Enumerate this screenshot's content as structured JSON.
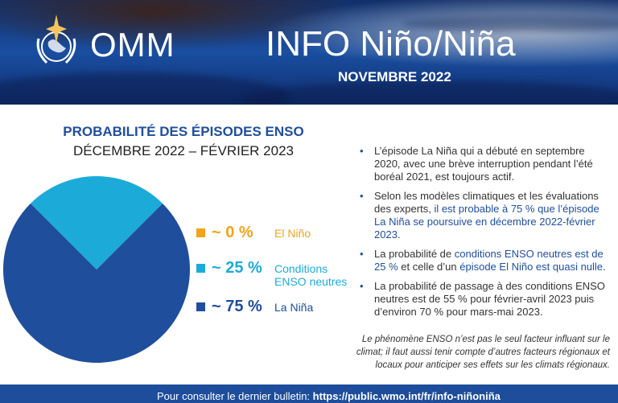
{
  "header": {
    "org": "OMM",
    "title": "INFO Niño/Niña",
    "subtitle": "NOVEMBRE 2022"
  },
  "chart_data": {
    "type": "pie",
    "title": "PROBABILITÉ DES ÉPISODES ENSO",
    "subtitle": "DÉCEMBRE 2022 – FÉVRIER 2023",
    "series": [
      {
        "name": "El Niño",
        "value": 0,
        "label": "~ 0 %",
        "color": "#f2a31b"
      },
      {
        "name": "Conditions ENSO neutres",
        "value": 25,
        "label": "~ 25 %",
        "color": "#1cabd9"
      },
      {
        "name": "La Niña",
        "value": 75,
        "label": "~ 75 %",
        "color": "#1f4e9c"
      }
    ]
  },
  "bullets": [
    {
      "parts": [
        {
          "t": "L’épisode La Niña qui a débuté en septembre 2020, avec une brève interruption pendant l’été boréal 2021, est toujours actif.",
          "hl": false
        }
      ]
    },
    {
      "parts": [
        {
          "t": "Selon les modèles climatiques et les évaluations des experts, ",
          "hl": false
        },
        {
          "t": "il est probable à 75 % que l’épisode La Niña se poursuive en décembre 2022-février 2023",
          "hl": true
        },
        {
          "t": ".",
          "hl": false
        }
      ]
    },
    {
      "parts": [
        {
          "t": "La probabilité de ",
          "hl": false
        },
        {
          "t": "conditions ENSO neutres est de 25 %",
          "hl": true
        },
        {
          "t": " et celle d’un ",
          "hl": false
        },
        {
          "t": "épisode El Niño est quasi nulle",
          "hl": true
        },
        {
          "t": ".",
          "hl": false
        }
      ]
    },
    {
      "parts": [
        {
          "t": "La probabilité de passage à des conditions ENSO neutres est de 55 % pour février-avril 2023 puis d’environ 70 % pour mars-mai 2023.",
          "hl": false
        }
      ]
    }
  ],
  "note": "Le phénomène ENSO n’est pas le seul facteur influant sur le climat; il faut aussi tenir compte d’autres facteurs régionaux et locaux pour anticiper ses effets sur les climats régionaux.",
  "footer": {
    "text": "Pour consulter le dernier bulletin: ",
    "link": "https://public.wmo.int/fr/info-niñoniña"
  }
}
